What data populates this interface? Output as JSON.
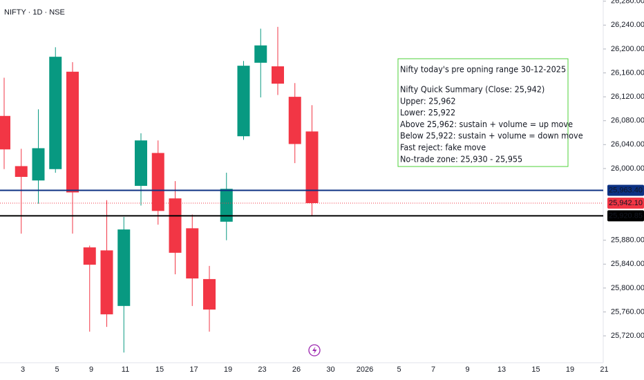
{
  "chart_data": {
    "type": "candlestick",
    "title": "NIFTY · 1D · NSE",
    "ylim": [
      25675,
      26282
    ],
    "yticks": [
      {
        "value": 25720,
        "label": "25,720.00"
      },
      {
        "value": 25760,
        "label": "25,760.00"
      },
      {
        "value": 25800,
        "label": "25,800.00"
      },
      {
        "value": 25840,
        "label": "25,840.00"
      },
      {
        "value": 25880,
        "label": "25,880.00"
      },
      {
        "value": 26000,
        "label": "26,000.00"
      },
      {
        "value": 26040,
        "label": "26,040.00"
      },
      {
        "value": 26080,
        "label": "26,080.00"
      },
      {
        "value": 26120,
        "label": "26,120.00"
      },
      {
        "value": 26160,
        "label": "26,160.00"
      },
      {
        "value": 26200,
        "label": "26,200.00"
      },
      {
        "value": 26240,
        "label": "26,240.00"
      },
      {
        "value": 26280,
        "label": "26,280.00"
      }
    ],
    "grid": false,
    "up_color": "#089981",
    "down_color": "#f23645",
    "x_labels": [
      "3",
      "5",
      "9",
      "11",
      "15",
      "17",
      "19",
      "23",
      "26",
      "30",
      "2026",
      "5",
      "7",
      "9",
      "13",
      "15",
      "19",
      "21"
    ],
    "candles": [
      {
        "open": 26088,
        "high": 26152,
        "low": 25999,
        "close": 26032
      },
      {
        "open": 26004,
        "high": 26033,
        "low": 25891,
        "close": 25986
      },
      {
        "open": 25980,
        "high": 26099,
        "low": 25941,
        "close": 26034
      },
      {
        "open": 25999,
        "high": 26203,
        "low": 25993,
        "close": 26187
      },
      {
        "open": 26162,
        "high": 26178,
        "low": 25891,
        "close": 25960
      },
      {
        "open": 25868,
        "high": 25871,
        "low": 25727,
        "close": 25839
      },
      {
        "open": 25863,
        "high": 25947,
        "low": 25735,
        "close": 25756
      },
      {
        "open": 25770,
        "high": 25919,
        "low": 25692,
        "close": 25898
      },
      {
        "open": 25971,
        "high": 26059,
        "low": 25938,
        "close": 26047
      },
      {
        "open": 26026,
        "high": 26047,
        "low": 25906,
        "close": 25929
      },
      {
        "open": 25950,
        "high": 25979,
        "low": 25823,
        "close": 25859
      },
      {
        "open": 25900,
        "high": 25923,
        "low": 25770,
        "close": 25816
      },
      {
        "open": 25815,
        "high": 25837,
        "low": 25727,
        "close": 25764
      },
      {
        "open": 25911,
        "high": 25993,
        "low": 25880,
        "close": 25966
      },
      {
        "open": 26054,
        "high": 26180,
        "low": 26048,
        "close": 26172
      },
      {
        "open": 26177,
        "high": 26234,
        "low": 26119,
        "close": 26206
      },
      {
        "open": 26171,
        "high": 26237,
        "low": 26123,
        "close": 26142
      },
      {
        "open": 26120,
        "high": 26143,
        "low": 26009,
        "close": 26041
      },
      {
        "open": 26062,
        "high": 26106,
        "low": 25921,
        "close": 25942.1
      }
    ],
    "price_lines": [
      {
        "value": 25963.4,
        "label": "25,963.40",
        "color": "#0c3183",
        "style": "solid"
      },
      {
        "value": 25942.1,
        "label": "25,942.10",
        "color": "#f23645",
        "style": "dotted"
      },
      {
        "value": 25920.85,
        "label": "25,920.85",
        "color": "#000000",
        "style": "solid"
      }
    ],
    "annotation": {
      "title": "Nifty today's pre opning range 30-12-2025",
      "color": "#4cd137",
      "lines": [
        "Nifty Quick Summary (Close: 25,942)",
        "Upper: 25,962",
        "Lower: 25,922",
        "Above 25,962: sustain + volume = up move",
        "Below 25,922: sustain + volume = down move",
        "Fast reject: fake move",
        "No-trade zone: 25,930 - 25,955"
      ]
    }
  }
}
